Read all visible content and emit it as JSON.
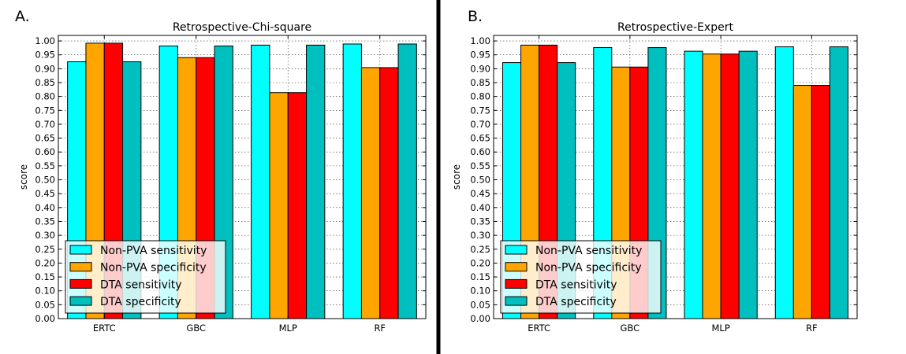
{
  "panels": [
    {
      "letter": "A.",
      "title": "Retrospective-Chi-square"
    },
    {
      "letter": "B.",
      "title": "Retrospective-Expert"
    }
  ],
  "chart_data": [
    {
      "type": "bar",
      "title": "Retrospective-Chi-square",
      "xlabel": "",
      "ylabel": "score",
      "ylim": [
        0,
        1.02
      ],
      "yticks": [
        "0.00",
        "0.05",
        "0.10",
        "0.15",
        "0.20",
        "0.25",
        "0.30",
        "0.35",
        "0.40",
        "0.45",
        "0.50",
        "0.55",
        "0.60",
        "0.65",
        "0.70",
        "0.75",
        "0.80",
        "0.85",
        "0.90",
        "0.95",
        "1.00"
      ],
      "grid": true,
      "legend_position": "lower-left",
      "categories": [
        "ERTC",
        "GBC",
        "MLP",
        "RF"
      ],
      "series": [
        {
          "name": "Non-PVA sensitivity",
          "color": "#00ffff",
          "values": [
            0.925,
            0.982,
            0.985,
            0.989
          ]
        },
        {
          "name": "Non-PVA specificity",
          "color": "#ffa500",
          "values": [
            0.992,
            0.94,
            0.814,
            0.904
          ]
        },
        {
          "name": "DTA sensitivity",
          "color": "#ff0000",
          "values": [
            0.992,
            0.94,
            0.814,
            0.904
          ]
        },
        {
          "name": "DTA specificity",
          "color": "#00bfbf",
          "values": [
            0.925,
            0.982,
            0.985,
            0.989
          ]
        }
      ]
    },
    {
      "type": "bar",
      "title": "Retrospective-Expert",
      "xlabel": "",
      "ylabel": "score",
      "ylim": [
        0,
        1.02
      ],
      "yticks": [
        "0.00",
        "0.05",
        "0.10",
        "0.15",
        "0.20",
        "0.25",
        "0.30",
        "0.35",
        "0.40",
        "0.45",
        "0.50",
        "0.55",
        "0.60",
        "0.65",
        "0.70",
        "0.75",
        "0.80",
        "0.85",
        "0.90",
        "0.95",
        "1.00"
      ],
      "grid": true,
      "legend_position": "lower-left",
      "categories": [
        "ERTC",
        "GBC",
        "MLP",
        "RF"
      ],
      "series": [
        {
          "name": "Non-PVA sensitivity",
          "color": "#00ffff",
          "values": [
            0.922,
            0.976,
            0.963,
            0.979
          ]
        },
        {
          "name": "Non-PVA specificity",
          "color": "#ffa500",
          "values": [
            0.985,
            0.906,
            0.953,
            0.84
          ]
        },
        {
          "name": "DTA sensitivity",
          "color": "#ff0000",
          "values": [
            0.985,
            0.906,
            0.953,
            0.84
          ]
        },
        {
          "name": "DTA specificity",
          "color": "#00bfbf",
          "values": [
            0.922,
            0.976,
            0.963,
            0.979
          ]
        }
      ]
    }
  ]
}
